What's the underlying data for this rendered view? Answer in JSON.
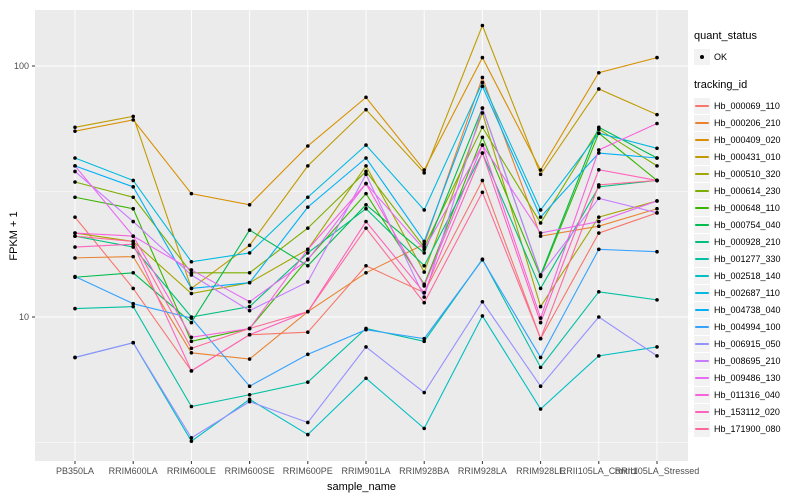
{
  "legend": {
    "quant_status_title": "quant_status",
    "quant_status_value": "OK",
    "tracking_id_title": "tracking_id"
  },
  "style": {
    "panel_bg": "#EBEBEB",
    "grid_color": "#FFFFFF",
    "tick_color": "#333333",
    "tick_label_color": "#4D4D4D",
    "point_color": "#000000",
    "key_bg": "#F2F2F2"
  },
  "chart_data": {
    "type": "line",
    "title": "",
    "xlabel": "sample_name",
    "ylabel": "FPKM + 1",
    "y_scale": "log10",
    "y_ticks": [
      10,
      100
    ],
    "y_minor_ticks": [
      3.162,
      31.62
    ],
    "ylim": [
      2.6,
      170
    ],
    "grid": true,
    "legend_position": "right",
    "point_marker": "black point (quant_status OK)",
    "categories": [
      "PB350LA",
      "RRIM600LA",
      "RRIM600LE",
      "RRIM600SE",
      "RRIM600PE",
      "RRIM901LA",
      "RRIM928BA",
      "RRIM928LA",
      "RRIM928LE",
      "RRII105LA_Control",
      "RRII105LA_Stressed"
    ],
    "series": [
      {
        "name": "Hb_000069_110",
        "color": "#F8766D",
        "values": [
          25,
          13,
          6.1,
          8.5,
          8.7,
          16,
          12.5,
          35,
          8.2,
          21.6,
          26
        ]
      },
      {
        "name": "Hb_000206_210",
        "color": "#EA8331",
        "values": [
          17.2,
          17.4,
          7.2,
          6.8,
          10.5,
          15,
          19.5,
          90,
          21,
          23,
          27
        ]
      },
      {
        "name": "Hb_000409_020",
        "color": "#D89000",
        "values": [
          55,
          61,
          31,
          28,
          48,
          75,
          38.5,
          108,
          38.5,
          94,
          108
        ]
      },
      {
        "name": "Hb_000431_010",
        "color": "#C09B00",
        "values": [
          57,
          63,
          13,
          19.3,
          40,
          67,
          37.5,
          145,
          37,
          81,
          64
        ]
      },
      {
        "name": "Hb_000510_320",
        "color": "#A3A500",
        "values": [
          21.6,
          20,
          12.4,
          13.7,
          18.6,
          40,
          15.1,
          65,
          11,
          25,
          29
        ]
      },
      {
        "name": "Hb_000614_230",
        "color": "#7CAE00",
        "values": [
          34.5,
          30,
          15,
          15,
          22.6,
          38,
          19,
          57,
          23.7,
          56,
          40
        ]
      },
      {
        "name": "Hb_000648_110",
        "color": "#39B600",
        "values": [
          30,
          27,
          8,
          9,
          17,
          31,
          13.5,
          52,
          14.5,
          54,
          35
        ]
      },
      {
        "name": "Hb_000754_040",
        "color": "#00BB4E",
        "values": [
          14.4,
          15,
          9.5,
          22.2,
          16,
          28,
          18,
          68,
          14.7,
          57,
          43
        ]
      },
      {
        "name": "Hb_000928_210",
        "color": "#00BF7D",
        "values": [
          21,
          19,
          10,
          11,
          18,
          27,
          16,
          45,
          13,
          33,
          35
        ]
      },
      {
        "name": "Hb_001277_330",
        "color": "#00C1A3",
        "values": [
          10.8,
          11,
          4.4,
          4.9,
          5.5,
          9,
          8,
          17,
          6.3,
          12.6,
          11.7
        ]
      },
      {
        "name": "Hb_002518_140",
        "color": "#00BFC4",
        "values": [
          6.9,
          7.9,
          3.2,
          4.7,
          3.4,
          5.7,
          3.6,
          10.1,
          4.3,
          7,
          7.6
        ]
      },
      {
        "name": "Hb_002687_110",
        "color": "#00BAE0",
        "values": [
          43,
          35,
          16.6,
          18,
          30,
          48.4,
          26.7,
          86,
          26.7,
          54,
          47
        ]
      },
      {
        "name": "Hb_004738_040",
        "color": "#00B0F6",
        "values": [
          40,
          33,
          13,
          13.7,
          27.4,
          43,
          20,
          83,
          25,
          45,
          43
        ]
      },
      {
        "name": "Hb_004994_100",
        "color": "#35A2FF",
        "values": [
          14.5,
          11.3,
          9.9,
          5.3,
          7.1,
          8.9,
          8.2,
          16.9,
          6.9,
          18.6,
          18.2
        ]
      },
      {
        "name": "Hb_006915_050",
        "color": "#9590FF",
        "values": [
          6.9,
          7.9,
          3.3,
          4.6,
          3.8,
          7.6,
          5,
          11.5,
          5.3,
          10,
          7
        ]
      },
      {
        "name": "Hb_008695_210",
        "color": "#C77CFF",
        "values": [
          38,
          24,
          14.7,
          10.6,
          13.8,
          37,
          12,
          68,
          14.7,
          29.7,
          26
        ]
      },
      {
        "name": "Hb_009486_130",
        "color": "#E76BF3",
        "values": [
          40,
          21,
          15.4,
          11.5,
          16.9,
          34,
          18.6,
          48.4,
          21.6,
          24,
          29
        ]
      },
      {
        "name": "Hb_011316_040",
        "color": "#FA62DB",
        "values": [
          21.6,
          21,
          8.3,
          9,
          18.6,
          34,
          13.3,
          48.4,
          9.9,
          46.3,
          59
        ]
      },
      {
        "name": "Hb_153112_020",
        "color": "#FF62BC",
        "values": [
          19,
          19.5,
          6.1,
          8.5,
          10.5,
          24,
          12.5,
          45,
          9.5,
          38.6,
          35
        ]
      },
      {
        "name": "Hb_171900_080",
        "color": "#FF6A98",
        "values": [
          21,
          20,
          7.5,
          9,
          10.5,
          22.6,
          11.4,
          31.4,
          8.2,
          33.6,
          35
        ]
      }
    ]
  }
}
